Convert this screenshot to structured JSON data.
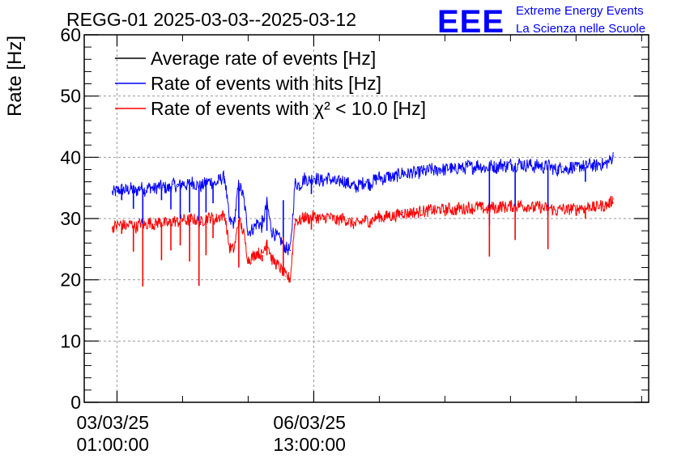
{
  "chart_data": {
    "type": "line",
    "title": "REGG-01 2025-03-03--2025-03-12",
    "ylabel": "Rate [Hz]",
    "xlabel": "",
    "ylim": [
      0,
      60
    ],
    "xlim_hours": [
      -14.0,
      227.0
    ],
    "y_ticks": [
      0,
      10,
      20,
      30,
      40,
      50,
      60
    ],
    "x_ticks": [
      {
        "hours": 0,
        "line1": "03/03/25",
        "line2": "01:00:00"
      },
      {
        "hours": 84,
        "line1": "06/03/25",
        "line2": "13:00:00"
      }
    ],
    "grid": true,
    "legend_position": "top-left",
    "series": [
      {
        "name": "Average rate of events [Hz]",
        "color": "#000000",
        "x_hours": [],
        "values": []
      },
      {
        "name": "Rate of events with hits [Hz]",
        "color": "#0000ff",
        "x_hours": [
          -2,
          0,
          2,
          4,
          6,
          8,
          10,
          12,
          14,
          16,
          18,
          20,
          22,
          24,
          26,
          28,
          30,
          32,
          34,
          36,
          38,
          40,
          42,
          44,
          46,
          48,
          50,
          52,
          54,
          56,
          58,
          60,
          62,
          64,
          66,
          68,
          70,
          72,
          74,
          76,
          78,
          80,
          82,
          84,
          86,
          88,
          90,
          92,
          94,
          96,
          98,
          100,
          102,
          104,
          106,
          108,
          110,
          112,
          114,
          116,
          118,
          120,
          122,
          124,
          126,
          128,
          130,
          132,
          134,
          136,
          138,
          140,
          142,
          144,
          146,
          148,
          150,
          152,
          154,
          156,
          158,
          160,
          162,
          164,
          166,
          168,
          170,
          172,
          174,
          176,
          178,
          180,
          182,
          184,
          186,
          188,
          190,
          192,
          194,
          196,
          198,
          200,
          202,
          204,
          206,
          208,
          210,
          212
        ],
        "values": [
          34.2,
          34.5,
          34.8,
          34.6,
          34.9,
          34.4,
          35.1,
          34.6,
          35.2,
          34.8,
          35.3,
          35.1,
          34.9,
          35.6,
          35.2,
          35.8,
          35.4,
          36.0,
          35.5,
          35.2,
          35.9,
          36.1,
          35.6,
          36.4,
          36.8,
          29.5,
          29.2,
          35.8,
          33.5,
          27.8,
          28.3,
          29.4,
          28.6,
          32.5,
          28.0,
          27.2,
          26.4,
          25.2,
          24.8,
          35.8,
          35.4,
          36.6,
          36.2,
          36.8,
          36.4,
          36.1,
          36.7,
          36.2,
          35.8,
          36.3,
          35.9,
          35.4,
          35.1,
          35.6,
          36.0,
          35.7,
          36.3,
          36.8,
          36.4,
          37.0,
          36.6,
          37.1,
          37.5,
          37.2,
          37.6,
          37.3,
          37.8,
          37.6,
          38.1,
          37.7,
          38.2,
          37.9,
          38.4,
          37.8,
          38.5,
          38.1,
          38.6,
          38.3,
          38.8,
          38.4,
          38.2,
          38.7,
          38.3,
          38.9,
          38.5,
          38.9,
          38.6,
          39.1,
          38.6,
          38.9,
          38.4,
          38.8,
          38.3,
          38.7,
          38.2,
          37.9,
          38.5,
          38.0,
          38.5,
          38.1,
          38.7,
          38.4,
          38.9,
          38.5,
          39.0,
          38.8,
          39.3,
          40.2
        ]
      },
      {
        "name": "Rate of events with χ² < 10.0 [Hz]",
        "color": "#ff0000",
        "x_hours": [
          -2,
          0,
          2,
          4,
          6,
          8,
          10,
          12,
          14,
          16,
          18,
          20,
          22,
          24,
          26,
          28,
          30,
          32,
          34,
          36,
          38,
          40,
          42,
          44,
          46,
          48,
          50,
          52,
          54,
          56,
          58,
          60,
          62,
          64,
          66,
          68,
          70,
          72,
          74,
          76,
          78,
          80,
          82,
          84,
          86,
          88,
          90,
          92,
          94,
          96,
          98,
          100,
          102,
          104,
          106,
          108,
          110,
          112,
          114,
          116,
          118,
          120,
          122,
          124,
          126,
          128,
          130,
          132,
          134,
          136,
          138,
          140,
          142,
          144,
          146,
          148,
          150,
          152,
          154,
          156,
          158,
          160,
          162,
          164,
          166,
          168,
          170,
          172,
          174,
          176,
          178,
          180,
          182,
          184,
          186,
          188,
          190,
          192,
          194,
          196,
          198,
          200,
          202,
          204,
          206,
          208,
          210,
          212
        ],
        "values": [
          28.6,
          28.9,
          29.1,
          28.7,
          29.2,
          28.5,
          29.3,
          28.9,
          29.4,
          29.0,
          29.5,
          29.3,
          29.1,
          29.7,
          29.4,
          29.9,
          29.6,
          30.0,
          29.7,
          29.4,
          30.1,
          30.2,
          29.8,
          30.4,
          30.6,
          25.2,
          25.0,
          29.8,
          27.8,
          23.2,
          23.8,
          24.5,
          24.0,
          26.5,
          23.4,
          22.6,
          21.8,
          20.6,
          20.2,
          29.8,
          29.6,
          30.3,
          30.0,
          30.4,
          30.1,
          29.9,
          30.4,
          30.0,
          29.6,
          30.1,
          29.7,
          29.3,
          29.0,
          29.4,
          29.8,
          29.5,
          30.0,
          30.4,
          30.1,
          30.6,
          30.3,
          30.7,
          31.0,
          30.8,
          31.1,
          30.9,
          31.3,
          31.1,
          31.5,
          31.2,
          31.6,
          31.3,
          31.7,
          31.2,
          31.8,
          31.5,
          31.9,
          31.6,
          32.0,
          31.7,
          31.5,
          31.9,
          31.6,
          32.1,
          31.8,
          32.1,
          31.9,
          32.3,
          31.9,
          32.1,
          31.7,
          32.0,
          31.6,
          31.9,
          31.5,
          31.2,
          31.7,
          31.3,
          31.7,
          31.4,
          31.9,
          31.6,
          32.1,
          31.7,
          32.2,
          32.0,
          32.4,
          33.2
        ]
      }
    ],
    "dips": [
      {
        "hours": 2,
        "hits": 33.0,
        "chi2": 27.5
      },
      {
        "hours": 7,
        "hits": 31.6,
        "chi2": 24.6
      },
      {
        "hours": 11,
        "hits": 28.5,
        "chi2": 18.9
      },
      {
        "hours": 19,
        "hits": 33.0,
        "chi2": 23.2
      },
      {
        "hours": 23,
        "hits": 31.5,
        "chi2": 24.8
      },
      {
        "hours": 27,
        "hits": 30.0,
        "chi2": 25.6
      },
      {
        "hours": 31,
        "hits": 31.0,
        "chi2": 23.0
      },
      {
        "hours": 35,
        "hits": 29.0,
        "chi2": 19.0
      },
      {
        "hours": 38,
        "hits": 31.0,
        "chi2": 24.0
      },
      {
        "hours": 41,
        "hits": 32.5,
        "chi2": 26.8
      },
      {
        "hours": 52,
        "hits": 30.0,
        "chi2": 22.0
      },
      {
        "hours": 62,
        "hits": 30.5,
        "chi2": 23.0
      },
      {
        "hours": 64,
        "hits": 28.0,
        "chi2": 24.0
      },
      {
        "hours": 71,
        "hits": 33.0,
        "chi2": 27.0
      },
      {
        "hours": 83,
        "hits": 34.0,
        "chi2": 28.2
      },
      {
        "hours": 108,
        "hits": 34.5,
        "chi2": 28.5
      },
      {
        "hours": 159,
        "hits": 29.0,
        "chi2": 23.8
      },
      {
        "hours": 170,
        "hits": 32.0,
        "chi2": 26.5
      },
      {
        "hours": 184,
        "hits": 30.5,
        "chi2": 25.0
      },
      {
        "hours": 200,
        "hits": 36.0,
        "chi2": 30.0
      }
    ]
  },
  "logo": {
    "letters": "EEE",
    "line1": "Extreme Energy Events",
    "line2": "La Scienza nelle Scuole",
    "color": "#0000ff"
  }
}
